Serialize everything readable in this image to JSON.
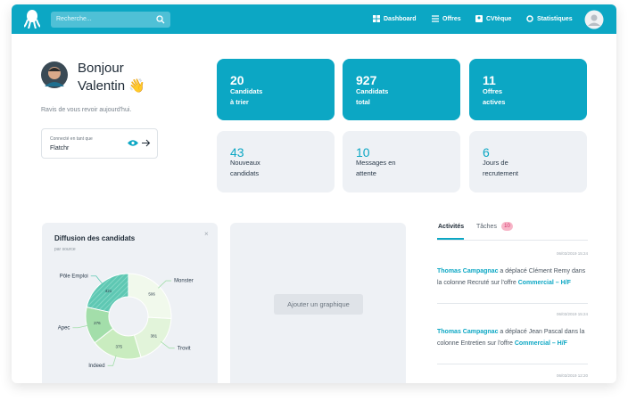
{
  "search": {
    "placeholder": "Recherche..."
  },
  "nav": [
    "Dashboard",
    "Offres",
    "CVtèque",
    "Statistiques"
  ],
  "greeting": {
    "line1": "Bonjour",
    "line2": "Valentin 👋",
    "subtitle": "Ravis de vous revoir aujourd'hui."
  },
  "account": {
    "caption": "Connecté en tant que",
    "name": "Flatchr"
  },
  "stats": [
    {
      "value": 20,
      "lines": [
        "Candidats",
        "à trier"
      ]
    },
    {
      "value": 927,
      "lines": [
        "Candidats",
        "total"
      ]
    },
    {
      "value": 11,
      "lines": [
        "Offres",
        "actives"
      ]
    },
    {
      "value": 43,
      "lines": [
        "Nouveaux",
        "candidats"
      ]
    },
    {
      "value": 10,
      "lines": [
        "Messages en",
        "attente"
      ]
    },
    {
      "value": 6,
      "lines": [
        "Jours de",
        "recrutement"
      ]
    }
  ],
  "chart_data": {
    "type": "pie",
    "title": "Diffusion des candidats",
    "subtitle": "par source",
    "categories": [
      "Monster",
      "Trovit",
      "Indeed",
      "Apec",
      "Pôle Emploi"
    ],
    "values": [
      506,
      381,
      375,
      276,
      421
    ],
    "colors": [
      "#f1f9ec",
      "#e2f4da",
      "#c9ecbf",
      "#a3deaa",
      "#5ec8b3"
    ]
  },
  "add_chart": "Ajouter un graphique",
  "tabs": {
    "activities": "Activités",
    "tasks": "Tâches",
    "tasks_count": 10
  },
  "activities": [
    {
      "time": "06/03/2019 15:24",
      "user": "Thomas Campagnac",
      "action": "a déplacé Clément Remy dans la colonne Recruté sur l'offre",
      "offer": "Commercial – H/F"
    },
    {
      "time": "06/03/2019 15:24",
      "user": "Thomas Campagnac",
      "action": "a déplacé Jean Pascal dans la colonne Entretien sur l'offre",
      "offer": "Commercial – H/F"
    },
    {
      "time": "06/03/2019 12:20"
    }
  ]
}
